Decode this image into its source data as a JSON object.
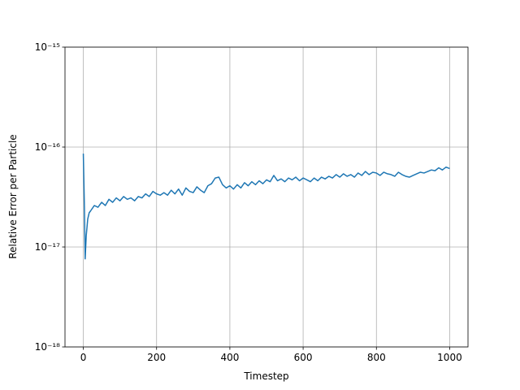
{
  "chart_data": {
    "type": "line",
    "xlabel": "Timestep",
    "ylabel": "Relative Error per Particle",
    "x": [
      0,
      3,
      5,
      8,
      12,
      16,
      20,
      30,
      40,
      50,
      60,
      70,
      80,
      90,
      100,
      110,
      120,
      130,
      140,
      150,
      160,
      170,
      180,
      190,
      200,
      210,
      220,
      230,
      240,
      250,
      260,
      270,
      280,
      290,
      300,
      310,
      320,
      330,
      340,
      350,
      360,
      370,
      380,
      390,
      400,
      410,
      420,
      430,
      440,
      450,
      460,
      470,
      480,
      490,
      500,
      510,
      520,
      530,
      540,
      550,
      560,
      570,
      580,
      590,
      600,
      610,
      620,
      630,
      640,
      650,
      660,
      670,
      680,
      690,
      700,
      710,
      720,
      730,
      740,
      750,
      760,
      770,
      780,
      790,
      800,
      810,
      820,
      830,
      840,
      850,
      860,
      870,
      880,
      890,
      900,
      910,
      920,
      930,
      940,
      950,
      960,
      970,
      980,
      990,
      1000
    ],
    "series": [
      {
        "color": "#1f77b4",
        "values": [
          8.6e-17,
          2.5e-17,
          7.6e-18,
          1.3e-17,
          1.9e-17,
          2.2e-17,
          2.3e-17,
          2.6e-17,
          2.5e-17,
          2.8e-17,
          2.6e-17,
          3e-17,
          2.8e-17,
          3.1e-17,
          2.9e-17,
          3.2e-17,
          3e-17,
          3.1e-17,
          2.9e-17,
          3.2e-17,
          3.1e-17,
          3.4e-17,
          3.2e-17,
          3.6e-17,
          3.4e-17,
          3.3e-17,
          3.5e-17,
          3.3e-17,
          3.7e-17,
          3.4e-17,
          3.8e-17,
          3.3e-17,
          3.9e-17,
          3.6e-17,
          3.5e-17,
          4e-17,
          3.7e-17,
          3.5e-17,
          4.1e-17,
          4.3e-17,
          4.9e-17,
          5e-17,
          4.2e-17,
          3.9e-17,
          4.1e-17,
          3.8e-17,
          4.2e-17,
          3.9e-17,
          4.4e-17,
          4.1e-17,
          4.5e-17,
          4.2e-17,
          4.6e-17,
          4.3e-17,
          4.7e-17,
          4.5e-17,
          5.2e-17,
          4.6e-17,
          4.8e-17,
          4.5e-17,
          4.9e-17,
          4.7e-17,
          5e-17,
          4.6e-17,
          4.9e-17,
          4.7e-17,
          4.5e-17,
          4.9e-17,
          4.6e-17,
          5e-17,
          4.8e-17,
          5.1e-17,
          4.9e-17,
          5.3e-17,
          5e-17,
          5.4e-17,
          5.1e-17,
          5.3e-17,
          5e-17,
          5.5e-17,
          5.2e-17,
          5.7e-17,
          5.3e-17,
          5.6e-17,
          5.5e-17,
          5.2e-17,
          5.6e-17,
          5.4e-17,
          5.3e-17,
          5.1e-17,
          5.6e-17,
          5.3e-17,
          5.1e-17,
          5e-17,
          5.2e-17,
          5.4e-17,
          5.6e-17,
          5.5e-17,
          5.7e-17,
          5.9e-17,
          5.8e-17,
          6.2e-17,
          5.9e-17,
          6.3e-17,
          6.1e-17
        ]
      }
    ],
    "xlim": [
      -50,
      1050
    ],
    "xticks": [
      0,
      200,
      400,
      600,
      800,
      1000
    ],
    "ylim": [
      1e-18,
      1e-15
    ],
    "log_y": true,
    "yticks": [
      {
        "value": 1e-18,
        "label": "10⁻¹⁸"
      },
      {
        "value": 1e-17,
        "label": "10⁻¹⁷"
      },
      {
        "value": 1e-16,
        "label": "10⁻¹⁶"
      },
      {
        "value": 1e-15,
        "label": "10⁻¹⁵"
      }
    ],
    "grid": true
  }
}
